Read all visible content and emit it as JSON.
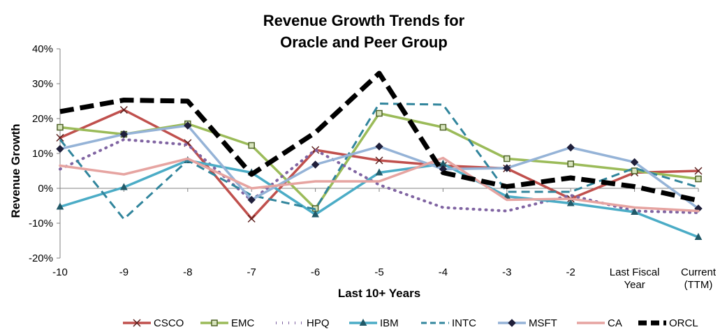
{
  "chart_data": {
    "type": "line",
    "title": [
      "Revenue Growth Trends for",
      "Oracle and Peer Group"
    ],
    "xlabel": "Last 10+ Years",
    "ylabel": "Revenue Growth",
    "ylim": [
      -20,
      40
    ],
    "y_ticks": [
      -20,
      -10,
      0,
      10,
      20,
      30,
      40
    ],
    "y_tick_labels": [
      "-20%",
      "-10%",
      "0%",
      "10%",
      "20%",
      "30%",
      "40%"
    ],
    "categories": [
      "-10",
      "-9",
      "-8",
      "-7",
      "-6",
      "-5",
      "-4",
      "-3",
      "-2",
      "Last Fiscal Year",
      "Current (TTM)"
    ],
    "category_label_lines": [
      [
        "-10"
      ],
      [
        "-9"
      ],
      [
        "-8"
      ],
      [
        "-7"
      ],
      [
        "-6"
      ],
      [
        "-5"
      ],
      [
        "-4"
      ],
      [
        "-3"
      ],
      [
        "-2"
      ],
      [
        "Last Fiscal",
        "Year"
      ],
      [
        "Current",
        "(TTM)"
      ]
    ],
    "legend_position": "bottom",
    "grid": false,
    "series": [
      {
        "name": "CSCO",
        "color": "#C0504D",
        "dash": "solid",
        "width": 3.5,
        "marker": "x",
        "values": [
          14.5,
          22.5,
          13.0,
          -8.7,
          11.0,
          8.0,
          6.5,
          5.7,
          -3.0,
          4.5,
          5.0
        ]
      },
      {
        "name": "EMC",
        "color": "#9BBB59",
        "dash": "solid",
        "width": 3.5,
        "marker": "square",
        "values": [
          17.5,
          15.5,
          18.5,
          12.3,
          -5.8,
          21.5,
          17.5,
          8.5,
          7.0,
          5.0,
          2.7
        ]
      },
      {
        "name": "HPQ",
        "color": "#8064A2",
        "dash": "dotted",
        "width": 4,
        "marker": "none",
        "values": [
          5.5,
          14.0,
          12.5,
          -3.5,
          11.0,
          1.0,
          -5.5,
          -6.5,
          -2.0,
          -6.5,
          -7.0
        ]
      },
      {
        "name": "IBM",
        "color": "#4BACC6",
        "dash": "solid",
        "width": 3.5,
        "marker": "triangle",
        "values": [
          -5.3,
          0.3,
          8.0,
          4.5,
          -7.5,
          4.5,
          7.0,
          -2.3,
          -4.3,
          -6.8,
          -14.0
        ]
      },
      {
        "name": "INTC",
        "color": "#31859C",
        "dash": "dashed",
        "width": 3,
        "marker": "none",
        "values": [
          14.0,
          -8.8,
          8.0,
          -2.0,
          -6.0,
          24.3,
          24.0,
          -1.0,
          -1.0,
          5.8,
          0.3
        ]
      },
      {
        "name": "MSFT",
        "color": "#95B3D7",
        "dash": "solid",
        "width": 3.5,
        "marker": "diamond",
        "values": [
          11.3,
          15.5,
          18.0,
          -3.3,
          6.8,
          12.0,
          5.5,
          5.8,
          11.7,
          7.5,
          -5.8
        ]
      },
      {
        "name": "CA",
        "color": "#E6A4A1",
        "dash": "solid",
        "width": 3.5,
        "marker": "none",
        "values": [
          6.5,
          4.0,
          8.5,
          0.0,
          2.0,
          2.0,
          8.7,
          -3.3,
          -3.0,
          -5.5,
          -6.5
        ]
      },
      {
        "name": "ORCL",
        "color": "#000000",
        "dash": "bigdash",
        "width": 7,
        "marker": "none",
        "values": [
          22.0,
          25.3,
          25.0,
          4.0,
          16.0,
          33.0,
          4.5,
          0.5,
          3.0,
          0.5,
          -3.5
        ]
      }
    ]
  }
}
